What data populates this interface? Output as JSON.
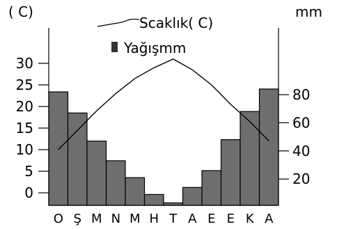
{
  "chart_data": {
    "type": "bar",
    "categories": [
      "O",
      "Ş",
      "M",
      "N",
      "M",
      "H",
      "T",
      "A",
      "E",
      "E",
      "K",
      "A"
    ],
    "series": [
      {
        "name": "Yağışmm",
        "type": "bar",
        "axis": "right",
        "values": [
          82,
          67,
          47,
          33,
          21,
          9,
          3,
          14,
          26,
          48,
          68,
          84
        ],
        "color": "#6e6e6e"
      },
      {
        "name": "Scaklık( C)",
        "type": "line",
        "axis": "left",
        "values": [
          10,
          14.5,
          19,
          23,
          26.5,
          29,
          31,
          28.5,
          25,
          20.5,
          16.5,
          12
        ],
        "color": "#000000"
      }
    ],
    "left_axis": {
      "unit_label": "( C)",
      "ticks": [
        "0",
        "5",
        "10",
        "15",
        "20",
        "25",
        "30"
      ],
      "tick_values": [
        0,
        5,
        10,
        15,
        20,
        25,
        30
      ]
    },
    "right_axis": {
      "unit_label": "mm",
      "ticks": [
        "20",
        "40",
        "60",
        "80"
      ],
      "tick_values": [
        20,
        40,
        60,
        80
      ]
    },
    "legend_placement": "top",
    "grid": false
  }
}
